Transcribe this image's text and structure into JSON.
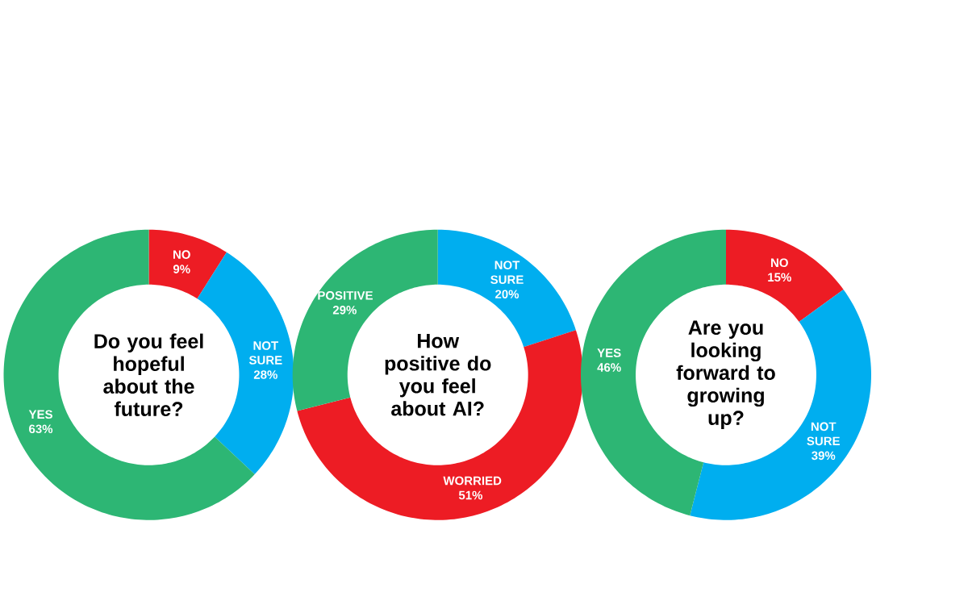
{
  "chart_data": [
    {
      "type": "donut",
      "title": "Do you feel hopeful about the future?",
      "categories": [
        "NO",
        "NOT SURE",
        "YES"
      ],
      "values": [
        9,
        28,
        63
      ],
      "value_labels": [
        "9%",
        "28%",
        "63%"
      ],
      "colors": [
        "#ed1c24",
        "#00aeef",
        "#2db674"
      ]
    },
    {
      "type": "donut",
      "title": "How positive do you feel about AI?",
      "categories": [
        "NOT SURE",
        "WORRIED",
        "POSITIVE"
      ],
      "values": [
        20,
        51,
        29
      ],
      "value_labels": [
        "20%",
        "51%",
        "29%"
      ],
      "colors": [
        "#00aeef",
        "#ed1c24",
        "#2db674"
      ]
    },
    {
      "type": "donut",
      "title": "Are you looking forward to growing up?",
      "categories": [
        "NO",
        "NOT SURE",
        "YES"
      ],
      "values": [
        15,
        39,
        46
      ],
      "value_labels": [
        "15%",
        "39%",
        "46%"
      ],
      "colors": [
        "#ed1c24",
        "#00aeef",
        "#2db674"
      ]
    }
  ]
}
